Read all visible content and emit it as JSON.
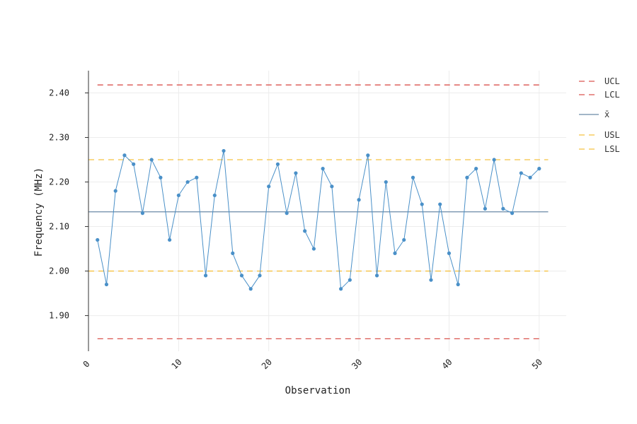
{
  "chart_data": {
    "type": "line",
    "title": "",
    "xlabel": "Observation",
    "ylabel": "Frequency (MHz)",
    "xlim": [
      0,
      53
    ],
    "ylim": [
      1.82,
      2.45
    ],
    "x_ticks": [
      0,
      10,
      20,
      30,
      40,
      50
    ],
    "x_tick_labels": [
      "0",
      "10",
      "20",
      "30",
      "40",
      "50"
    ],
    "y_ticks": [
      1.9,
      2.0,
      2.1,
      2.2,
      2.3,
      2.4
    ],
    "y_tick_labels": [
      "1.90",
      "2.00",
      "2.10",
      "2.20",
      "2.30",
      "2.40"
    ],
    "grid": true,
    "legend_position": "right",
    "series": [
      {
        "color": "#4a90c8",
        "x": [
          1,
          2,
          3,
          4,
          5,
          6,
          7,
          8,
          9,
          10,
          11,
          12,
          13,
          14,
          15,
          16,
          17,
          18,
          19,
          20,
          21,
          22,
          23,
          24,
          25,
          26,
          27,
          28,
          29,
          30,
          31,
          32,
          33,
          34,
          35,
          36,
          37,
          38,
          39,
          40,
          41,
          42,
          43,
          44,
          45,
          46,
          47,
          48,
          49,
          50
        ],
        "values": [
          2.07,
          1.97,
          2.18,
          2.26,
          2.24,
          2.13,
          2.25,
          2.21,
          2.07,
          2.17,
          2.2,
          2.21,
          1.99,
          2.17,
          2.27,
          2.04,
          1.99,
          1.96,
          1.99,
          2.19,
          2.24,
          2.13,
          2.22,
          2.09,
          2.05,
          2.23,
          2.19,
          1.96,
          1.98,
          2.16,
          2.26,
          1.99,
          2.2,
          2.04,
          2.07,
          2.21,
          2.15,
          1.98,
          2.15,
          2.04,
          1.97,
          2.21,
          2.23,
          2.14,
          2.25,
          2.14,
          2.13,
          2.22,
          2.21,
          2.23
        ]
      }
    ],
    "reference_lines": [
      {
        "label": "UCL",
        "value": 2.418,
        "color": "#d9534f",
        "style": "dashed",
        "x_range": [
          1,
          50
        ]
      },
      {
        "label": "LCL",
        "value": 1.848,
        "color": "#d9534f",
        "style": "dashed",
        "x_range": [
          1,
          50
        ]
      },
      {
        "label": "x̄",
        "value": 2.133,
        "color": "#6a8aa6",
        "style": "solid",
        "x_range": [
          0,
          51
        ]
      },
      {
        "label": "USL",
        "value": 2.25,
        "color": "#f5c242",
        "style": "dashed",
        "x_range": [
          0,
          51
        ]
      },
      {
        "label": "LSL",
        "value": 2.0,
        "color": "#f5c242",
        "style": "dashed",
        "x_range": [
          0,
          51
        ]
      }
    ],
    "legend": [
      {
        "label": "UCL",
        "color": "#d9534f",
        "style": "dashed"
      },
      {
        "label": "LCL",
        "color": "#d9534f",
        "style": "dashed"
      },
      {
        "label": "x̄",
        "color": "#6a8aa6",
        "style": "solid"
      },
      {
        "label": "USL",
        "color": "#f5c242",
        "style": "dashed"
      },
      {
        "label": "LSL",
        "color": "#f5c242",
        "style": "dashed"
      }
    ]
  }
}
